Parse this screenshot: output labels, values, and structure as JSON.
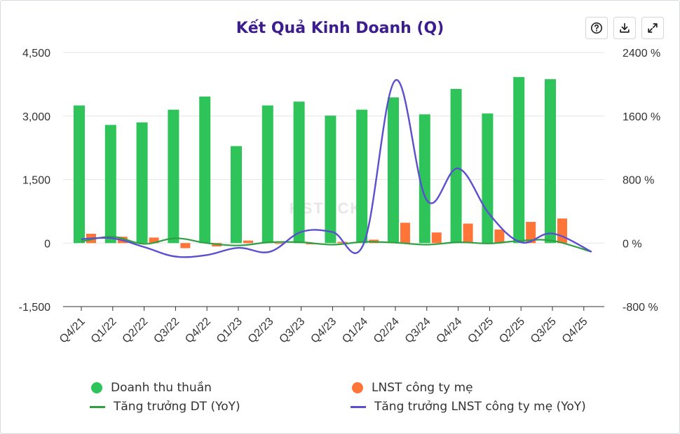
{
  "toolbar": {
    "help_icon": "question-circle-icon",
    "download_icon": "download-icon",
    "expand_icon": "expand-icon"
  },
  "chart_data": {
    "type": "bar",
    "title": "Kết Quả Kinh Doanh (Q)",
    "categories": [
      "Q4/21",
      "Q1/22",
      "Q2/22",
      "Q3/22",
      "Q4/22",
      "Q1/23",
      "Q2/23",
      "Q3/23",
      "Q4/23",
      "Q1/24",
      "Q2/24",
      "Q3/24",
      "Q4/24",
      "Q1/25",
      "Q2/25",
      "Q3/25",
      "Q4/25"
    ],
    "y_left": {
      "ticks": [
        "4,500",
        "3,000",
        "1,500",
        "0",
        "-1,500"
      ],
      "tick_values": [
        4500,
        3000,
        1500,
        0,
        -1500
      ],
      "ylim": [
        -1500,
        4500
      ]
    },
    "y_right": {
      "ticks": [
        "2400 %",
        "1600 %",
        "800 %",
        "0 %",
        "-800 %"
      ],
      "tick_values": [
        2400,
        1600,
        800,
        0,
        -800
      ],
      "ylim": [
        -800,
        2400
      ]
    },
    "series": [
      {
        "name": "Doanh thu thuần",
        "kind": "bar",
        "axis": "left",
        "color": "#2ec45a",
        "values": [
          3250,
          2790,
          2850,
          3150,
          3460,
          2290,
          3250,
          3340,
          3010,
          3150,
          3440,
          3040,
          3640,
          3060,
          3920,
          3870,
          null
        ]
      },
      {
        "name": "LNST công ty mẹ",
        "kind": "bar",
        "axis": "left",
        "color": "#ff7538",
        "values": [
          220,
          150,
          130,
          -120,
          -80,
          60,
          -20,
          -30,
          30,
          80,
          480,
          250,
          460,
          320,
          500,
          580,
          null
        ]
      },
      {
        "name": "Tăng trưởng DT (YoY)",
        "kind": "line",
        "axis": "right",
        "color": "#2ea043",
        "values": [
          20,
          80,
          -10,
          60,
          0,
          -30,
          10,
          10,
          -20,
          15,
          5,
          -20,
          10,
          -5,
          30,
          30,
          -110
        ]
      },
      {
        "name": "Tăng trưởng LNST công ty mẹ (YoY)",
        "kind": "line",
        "axis": "right",
        "color": "#5a4fcf",
        "values": [
          50,
          60,
          -50,
          -170,
          -150,
          -60,
          -110,
          140,
          140,
          0,
          2050,
          540,
          940,
          360,
          10,
          120,
          -110
        ]
      }
    ],
    "watermark": "KSTOCK",
    "legend_position": "bottom"
  }
}
